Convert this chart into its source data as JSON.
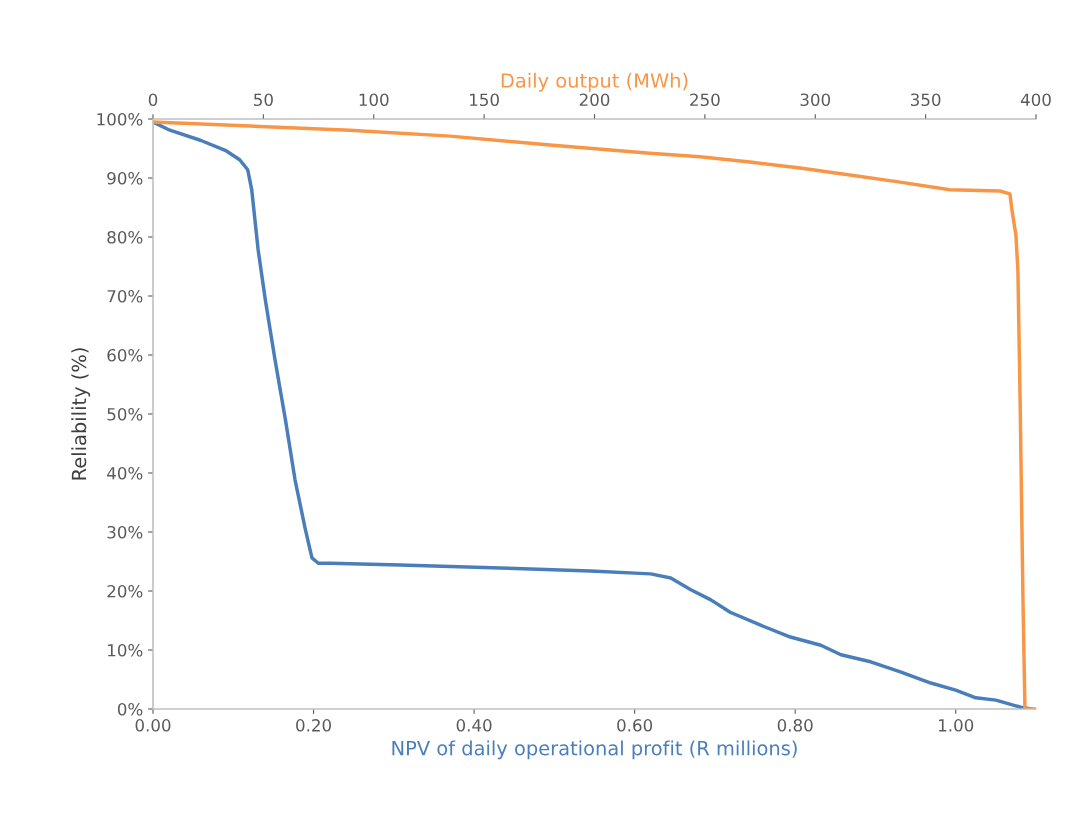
{
  "chart_data": {
    "type": "line",
    "xlabel": "NPV of daily operational profit (R millions)",
    "x2label": "Daily output (MWh)",
    "ylabel": "Reliability (%)",
    "xlim": [
      0,
      1.1
    ],
    "xticks": [
      {
        "value": 0,
        "label": "0.00"
      },
      {
        "value": 0.2,
        "label": "0.20"
      },
      {
        "value": 0.4,
        "label": "0.40"
      },
      {
        "value": 0.6,
        "label": "0.60"
      },
      {
        "value": 0.8,
        "label": "0.80"
      },
      {
        "value": 1.0,
        "label": "1.00"
      }
    ],
    "x2lim": [
      0,
      400
    ],
    "x2ticks": [
      0,
      50,
      100,
      150,
      200,
      250,
      300,
      350,
      400
    ],
    "ylim": [
      0,
      100
    ],
    "yticks": [
      {
        "value": 0,
        "label": "0%"
      },
      {
        "value": 10,
        "label": "10%"
      },
      {
        "value": 20,
        "label": "20%"
      },
      {
        "value": 30,
        "label": "30%"
      },
      {
        "value": 40,
        "label": "40%"
      },
      {
        "value": 50,
        "label": "50%"
      },
      {
        "value": 60,
        "label": "60%"
      },
      {
        "value": 70,
        "label": "70%"
      },
      {
        "value": 80,
        "label": "80%"
      },
      {
        "value": 90,
        "label": "90%"
      },
      {
        "value": 100,
        "label": "100%"
      }
    ],
    "grid": false,
    "legend": false,
    "marker": "none",
    "line_style": "solid",
    "series": [
      {
        "color": "#4a7ebb",
        "x": [
          0,
          0.021,
          0.059,
          0.09,
          0.108,
          0.118,
          0.123,
          0.131,
          0.14,
          0.152,
          0.165,
          0.177,
          0.19,
          0.198,
          0.206,
          0.221,
          0.308,
          0.433,
          0.545,
          0.62,
          0.645,
          0.67,
          0.695,
          0.719,
          0.757,
          0.794,
          0.832,
          0.857,
          0.894,
          0.931,
          0.969,
          1.0,
          1.025,
          1.05,
          1.081,
          1.094
        ],
        "values": [
          99.5,
          98.1,
          96.4,
          94.7,
          93.1,
          91.4,
          88,
          77.8,
          69.3,
          59.2,
          49,
          38.8,
          30.3,
          25.6,
          24.7,
          24.7,
          24.4,
          23.9,
          23.4,
          22.9,
          22.2,
          20.2,
          18.5,
          16.4,
          14.2,
          12.2,
          10.8,
          9.2,
          8.0,
          6.3,
          4.4,
          3.2,
          1.9,
          1.5,
          0.3,
          0
        ]
      },
      {
        "color": "#f79646",
        "axis": "x2",
        "x": [
          0,
          43.9,
          89.2,
          134.5,
          179.8,
          225.1,
          247.8,
          270.4,
          293.1,
          315.7,
          338.4,
          361.0,
          383.6,
          388.2,
          389.1,
          390.9,
          391.8,
          392.8,
          394.1,
          395.0,
          400
        ],
        "values": [
          99.5,
          98.8,
          98.1,
          97.1,
          95.6,
          94.2,
          93.6,
          92.7,
          91.7,
          90.5,
          89.3,
          88,
          87.8,
          87.3,
          84.6,
          80.3,
          74.4,
          52.4,
          18.5,
          0,
          0
        ]
      }
    ]
  }
}
